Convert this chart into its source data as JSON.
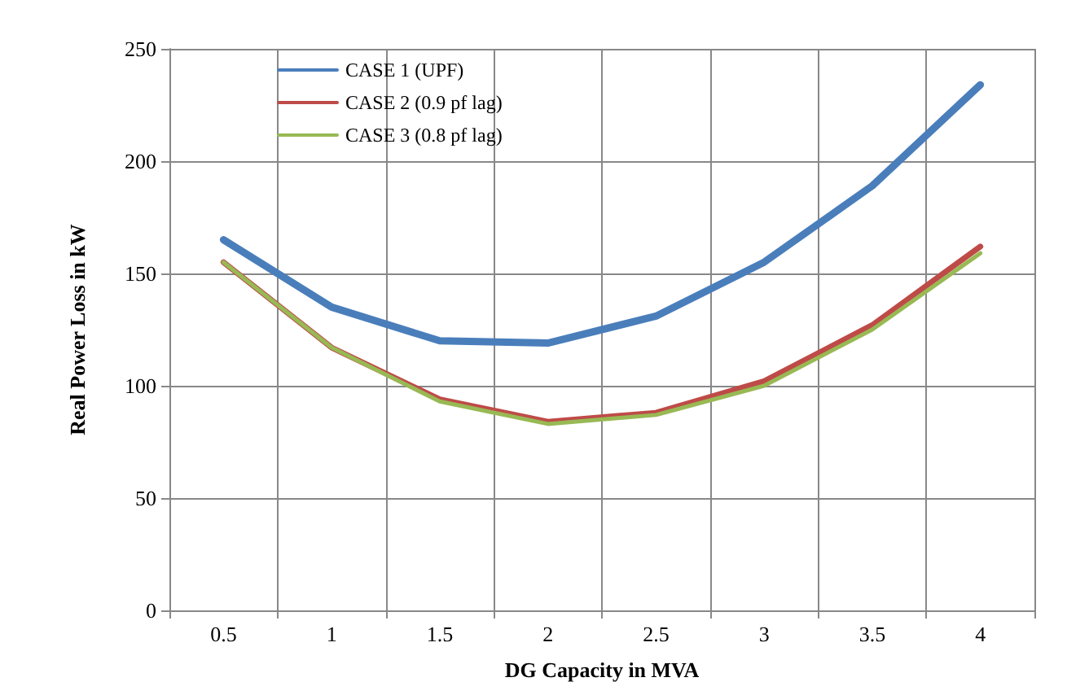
{
  "chart_data": {
    "type": "line",
    "xlabel": "DG Capacity in MVA",
    "ylabel": "Real Power Loss in kW",
    "categories": [
      "0.5",
      "1",
      "1.5",
      "2",
      "2.5",
      "3",
      "3.5",
      "4"
    ],
    "series": [
      {
        "name": "CASE 1 (UPF)",
        "color": "#4a7ebb",
        "values": [
          165,
          135,
          120,
          119,
          131,
          155,
          189,
          234
        ]
      },
      {
        "name": "CASE 2 (0.9 pf lag)",
        "color": "#be4b48",
        "values": [
          155,
          117,
          94,
          84,
          88,
          102,
          127,
          162
        ]
      },
      {
        "name": "CASE 3 (0.8 pf lag)",
        "color": "#98b954",
        "values": [
          155,
          117,
          93,
          83,
          87,
          100,
          125,
          159
        ]
      }
    ],
    "ylim": [
      0,
      250
    ],
    "yticks": [
      0,
      50,
      100,
      150,
      200,
      250
    ],
    "grid": true,
    "legend": "top left",
    "marker": "none",
    "line_style": "solid"
  }
}
